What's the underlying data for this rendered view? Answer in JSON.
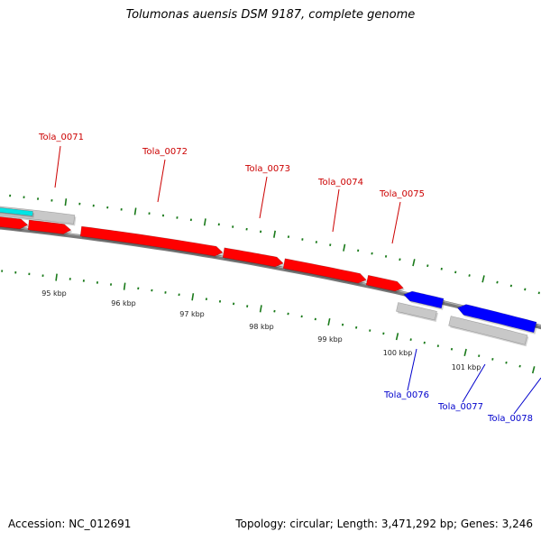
{
  "title": "Tolumonas auensis DSM 9187, complete genome",
  "accession_label": "Accession: NC_012691",
  "stats_label": "Topology: circular; Length: 3,471,292 bp; Genes: 3,246",
  "colors": {
    "backbone": "#7a7a7a",
    "forward_gene": "#ff0000",
    "reverse_gene": "#0000ff",
    "feature_other": "#c8c8c8",
    "feature_cyan": "#00e5e5",
    "tick": "#1a7a1a",
    "forward_label": "#cc0000",
    "reverse_label": "#0000cc"
  },
  "scale_ticks": [
    "95 kbp",
    "96 kbp",
    "97 kbp",
    "98 kbp",
    "99 kbp",
    "100 kbp",
    "101 kbp"
  ],
  "genes": [
    {
      "label": "Tola_0071",
      "strand": "forward"
    },
    {
      "label": "Tola_0072",
      "strand": "forward"
    },
    {
      "label": "Tola_0073",
      "strand": "forward"
    },
    {
      "label": "Tola_0074",
      "strand": "forward"
    },
    {
      "label": "Tola_0075",
      "strand": "forward"
    },
    {
      "label": "Tola_0076",
      "strand": "reverse"
    },
    {
      "label": "Tola_0077",
      "strand": "reverse"
    },
    {
      "label": "Tola_0078",
      "strand": "reverse"
    }
  ]
}
